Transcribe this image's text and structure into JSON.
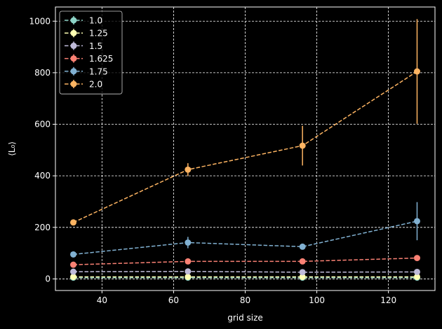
{
  "chart_data": {
    "type": "line",
    "xlabel": "grid size",
    "ylabel": "⟨L₀⟩",
    "xlim": [
      27,
      133
    ],
    "ylim": [
      -45,
      1055
    ],
    "x_ticks": [
      40,
      60,
      80,
      100,
      120
    ],
    "y_ticks": [
      0,
      200,
      400,
      600,
      800,
      1000
    ],
    "grid": true,
    "legend_position": "upper-left",
    "x": [
      32,
      64,
      96,
      128
    ],
    "series": [
      {
        "name": "1.0",
        "color": "#8dd3c7",
        "values": [
          5,
          5,
          5,
          5
        ],
        "errors": [
          0.5,
          0.5,
          0.5,
          0.5
        ]
      },
      {
        "name": "1.25",
        "color": "#feffb3",
        "values": [
          8,
          8,
          8,
          8
        ],
        "errors": [
          1,
          1,
          1,
          1
        ]
      },
      {
        "name": "1.5",
        "color": "#bfbbd9",
        "values": [
          28,
          29,
          26,
          27
        ],
        "errors": [
          2,
          3,
          2,
          3
        ]
      },
      {
        "name": "1.625",
        "color": "#fa8174",
        "values": [
          55,
          68,
          68,
          81
        ],
        "errors": [
          4,
          6,
          6,
          8
        ]
      },
      {
        "name": "1.75",
        "color": "#81b1d2",
        "values": [
          95,
          141,
          125,
          224
        ],
        "errors": [
          6,
          22,
          8,
          74
        ]
      },
      {
        "name": "2.0",
        "color": "#fdb462",
        "values": [
          219,
          424,
          517,
          805
        ],
        "errors": [
          6,
          25,
          77,
          203
        ]
      }
    ]
  }
}
